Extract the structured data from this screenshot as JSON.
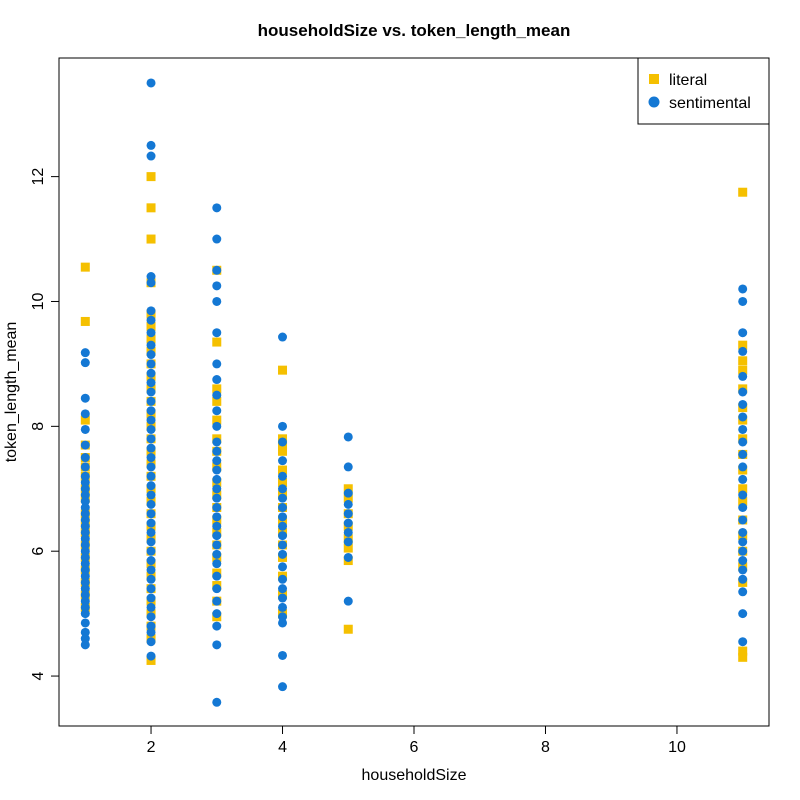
{
  "chart_data": {
    "type": "scatter",
    "title": "householdSize vs. token_length_mean",
    "xlabel": "householdSize",
    "ylabel": "token_length_mean",
    "xlim": [
      0.6,
      11.4
    ],
    "ylim": [
      3.2,
      13.9
    ],
    "xticks": [
      2,
      4,
      6,
      8,
      10
    ],
    "yticks": [
      4,
      6,
      8,
      10,
      12
    ],
    "grid": false,
    "legend_position": "top-right",
    "series": [
      {
        "name": "literal",
        "marker": "square",
        "color": "#F5C000",
        "points": [
          [
            1,
            10.55
          ],
          [
            1,
            9.68
          ],
          [
            1,
            8.1
          ],
          [
            1,
            7.7
          ],
          [
            1,
            7.5
          ],
          [
            1,
            7.35
          ],
          [
            1,
            7.2
          ],
          [
            1,
            7.0
          ],
          [
            1,
            6.85
          ],
          [
            1,
            6.6
          ],
          [
            1,
            6.45
          ],
          [
            1,
            6.3
          ],
          [
            1,
            6.1
          ],
          [
            1,
            5.9
          ],
          [
            1,
            5.7
          ],
          [
            1,
            5.5
          ],
          [
            1,
            5.3
          ],
          [
            1,
            5.1
          ],
          [
            2,
            12.0
          ],
          [
            2,
            11.5
          ],
          [
            2,
            11.0
          ],
          [
            2,
            10.3
          ],
          [
            2,
            9.8
          ],
          [
            2,
            9.6
          ],
          [
            2,
            9.4
          ],
          [
            2,
            9.2
          ],
          [
            2,
            9.0
          ],
          [
            2,
            8.8
          ],
          [
            2,
            8.6
          ],
          [
            2,
            8.4
          ],
          [
            2,
            8.2
          ],
          [
            2,
            8.0
          ],
          [
            2,
            7.8
          ],
          [
            2,
            7.6
          ],
          [
            2,
            7.4
          ],
          [
            2,
            7.2
          ],
          [
            2,
            7.0
          ],
          [
            2,
            6.8
          ],
          [
            2,
            6.6
          ],
          [
            2,
            6.4
          ],
          [
            2,
            6.2
          ],
          [
            2,
            6.0
          ],
          [
            2,
            5.8
          ],
          [
            2,
            5.6
          ],
          [
            2,
            5.4
          ],
          [
            2,
            5.2
          ],
          [
            2,
            5.0
          ],
          [
            2,
            4.8
          ],
          [
            2,
            4.6
          ],
          [
            2,
            4.25
          ],
          [
            3,
            10.5
          ],
          [
            3,
            9.35
          ],
          [
            3,
            8.6
          ],
          [
            3,
            8.4
          ],
          [
            3,
            8.1
          ],
          [
            3,
            7.8
          ],
          [
            3,
            7.6
          ],
          [
            3,
            7.35
          ],
          [
            3,
            7.1
          ],
          [
            3,
            6.9
          ],
          [
            3,
            6.7
          ],
          [
            3,
            6.5
          ],
          [
            3,
            6.3
          ],
          [
            3,
            6.1
          ],
          [
            3,
            5.9
          ],
          [
            3,
            5.65
          ],
          [
            3,
            5.45
          ],
          [
            3,
            5.2
          ],
          [
            3,
            4.95
          ],
          [
            4,
            8.9
          ],
          [
            4,
            7.8
          ],
          [
            4,
            7.7
          ],
          [
            4,
            7.6
          ],
          [
            4,
            7.3
          ],
          [
            4,
            7.1
          ],
          [
            4,
            6.9
          ],
          [
            4,
            6.7
          ],
          [
            4,
            6.5
          ],
          [
            4,
            6.3
          ],
          [
            4,
            6.1
          ],
          [
            4,
            5.9
          ],
          [
            4,
            5.6
          ],
          [
            4,
            5.3
          ],
          [
            4,
            5.0
          ],
          [
            5,
            7.0
          ],
          [
            5,
            6.85
          ],
          [
            5,
            6.6
          ],
          [
            5,
            6.4
          ],
          [
            5,
            6.2
          ],
          [
            5,
            6.05
          ],
          [
            5,
            5.85
          ],
          [
            5,
            4.75
          ],
          [
            11,
            11.75
          ],
          [
            11,
            9.3
          ],
          [
            11,
            9.05
          ],
          [
            11,
            8.9
          ],
          [
            11,
            8.6
          ],
          [
            11,
            8.3
          ],
          [
            11,
            8.1
          ],
          [
            11,
            7.8
          ],
          [
            11,
            7.55
          ],
          [
            11,
            7.3
          ],
          [
            11,
            7.0
          ],
          [
            11,
            6.8
          ],
          [
            11,
            6.5
          ],
          [
            11,
            6.25
          ],
          [
            11,
            6.0
          ],
          [
            11,
            5.75
          ],
          [
            11,
            5.5
          ],
          [
            11,
            4.4
          ],
          [
            11,
            4.3
          ]
        ]
      },
      {
        "name": "sentimental",
        "marker": "circle",
        "color": "#1478D4",
        "points": [
          [
            1,
            9.18
          ],
          [
            1,
            9.02
          ],
          [
            1,
            8.45
          ],
          [
            1,
            8.2
          ],
          [
            1,
            7.95
          ],
          [
            1,
            7.7
          ],
          [
            1,
            7.5
          ],
          [
            1,
            7.35
          ],
          [
            1,
            7.2
          ],
          [
            1,
            7.1
          ],
          [
            1,
            7.0
          ],
          [
            1,
            6.9
          ],
          [
            1,
            6.8
          ],
          [
            1,
            6.7
          ],
          [
            1,
            6.6
          ],
          [
            1,
            6.5
          ],
          [
            1,
            6.4
          ],
          [
            1,
            6.3
          ],
          [
            1,
            6.2
          ],
          [
            1,
            6.1
          ],
          [
            1,
            6.0
          ],
          [
            1,
            5.9
          ],
          [
            1,
            5.8
          ],
          [
            1,
            5.7
          ],
          [
            1,
            5.6
          ],
          [
            1,
            5.5
          ],
          [
            1,
            5.4
          ],
          [
            1,
            5.3
          ],
          [
            1,
            5.2
          ],
          [
            1,
            5.1
          ],
          [
            1,
            5.0
          ],
          [
            1,
            4.85
          ],
          [
            1,
            4.7
          ],
          [
            1,
            4.6
          ],
          [
            1,
            4.5
          ],
          [
            2,
            13.5
          ],
          [
            2,
            12.5
          ],
          [
            2,
            12.33
          ],
          [
            2,
            10.4
          ],
          [
            2,
            10.3
          ],
          [
            2,
            9.85
          ],
          [
            2,
            9.7
          ],
          [
            2,
            9.5
          ],
          [
            2,
            9.3
          ],
          [
            2,
            9.15
          ],
          [
            2,
            9.0
          ],
          [
            2,
            8.85
          ],
          [
            2,
            8.7
          ],
          [
            2,
            8.55
          ],
          [
            2,
            8.4
          ],
          [
            2,
            8.25
          ],
          [
            2,
            8.1
          ],
          [
            2,
            7.95
          ],
          [
            2,
            7.8
          ],
          [
            2,
            7.65
          ],
          [
            2,
            7.5
          ],
          [
            2,
            7.35
          ],
          [
            2,
            7.2
          ],
          [
            2,
            7.05
          ],
          [
            2,
            6.9
          ],
          [
            2,
            6.75
          ],
          [
            2,
            6.6
          ],
          [
            2,
            6.45
          ],
          [
            2,
            6.3
          ],
          [
            2,
            6.15
          ],
          [
            2,
            6.0
          ],
          [
            2,
            5.85
          ],
          [
            2,
            5.7
          ],
          [
            2,
            5.55
          ],
          [
            2,
            5.4
          ],
          [
            2,
            5.25
          ],
          [
            2,
            5.1
          ],
          [
            2,
            4.95
          ],
          [
            2,
            4.8
          ],
          [
            2,
            4.7
          ],
          [
            2,
            4.55
          ],
          [
            2,
            4.32
          ],
          [
            3,
            11.5
          ],
          [
            3,
            11.0
          ],
          [
            3,
            10.5
          ],
          [
            3,
            10.25
          ],
          [
            3,
            10.0
          ],
          [
            3,
            9.5
          ],
          [
            3,
            9.0
          ],
          [
            3,
            8.75
          ],
          [
            3,
            8.5
          ],
          [
            3,
            8.25
          ],
          [
            3,
            8.0
          ],
          [
            3,
            7.75
          ],
          [
            3,
            7.6
          ],
          [
            3,
            7.45
          ],
          [
            3,
            7.3
          ],
          [
            3,
            7.15
          ],
          [
            3,
            7.0
          ],
          [
            3,
            6.85
          ],
          [
            3,
            6.7
          ],
          [
            3,
            6.55
          ],
          [
            3,
            6.4
          ],
          [
            3,
            6.25
          ],
          [
            3,
            6.1
          ],
          [
            3,
            5.95
          ],
          [
            3,
            5.8
          ],
          [
            3,
            5.6
          ],
          [
            3,
            5.4
          ],
          [
            3,
            5.2
          ],
          [
            3,
            5.0
          ],
          [
            3,
            4.8
          ],
          [
            3,
            4.5
          ],
          [
            3,
            3.58
          ],
          [
            4,
            9.43
          ],
          [
            4,
            8.0
          ],
          [
            4,
            7.75
          ],
          [
            4,
            7.45
          ],
          [
            4,
            7.2
          ],
          [
            4,
            7.0
          ],
          [
            4,
            6.85
          ],
          [
            4,
            6.7
          ],
          [
            4,
            6.55
          ],
          [
            4,
            6.4
          ],
          [
            4,
            6.25
          ],
          [
            4,
            6.1
          ],
          [
            4,
            5.95
          ],
          [
            4,
            5.75
          ],
          [
            4,
            5.55
          ],
          [
            4,
            5.4
          ],
          [
            4,
            5.25
          ],
          [
            4,
            5.1
          ],
          [
            4,
            4.95
          ],
          [
            4,
            4.85
          ],
          [
            4,
            4.33
          ],
          [
            4,
            3.83
          ],
          [
            5,
            7.83
          ],
          [
            5,
            7.35
          ],
          [
            5,
            6.93
          ],
          [
            5,
            6.75
          ],
          [
            5,
            6.6
          ],
          [
            5,
            6.45
          ],
          [
            5,
            6.3
          ],
          [
            5,
            6.15
          ],
          [
            5,
            5.9
          ],
          [
            5,
            5.2
          ],
          [
            11,
            10.2
          ],
          [
            11,
            10.0
          ],
          [
            11,
            9.5
          ],
          [
            11,
            9.2
          ],
          [
            11,
            8.8
          ],
          [
            11,
            8.55
          ],
          [
            11,
            8.35
          ],
          [
            11,
            8.15
          ],
          [
            11,
            7.95
          ],
          [
            11,
            7.75
          ],
          [
            11,
            7.55
          ],
          [
            11,
            7.35
          ],
          [
            11,
            7.15
          ],
          [
            11,
            6.9
          ],
          [
            11,
            6.7
          ],
          [
            11,
            6.5
          ],
          [
            11,
            6.3
          ],
          [
            11,
            6.15
          ],
          [
            11,
            6.0
          ],
          [
            11,
            5.85
          ],
          [
            11,
            5.7
          ],
          [
            11,
            5.55
          ],
          [
            11,
            5.35
          ],
          [
            11,
            5.0
          ],
          [
            11,
            4.55
          ]
        ]
      }
    ]
  }
}
